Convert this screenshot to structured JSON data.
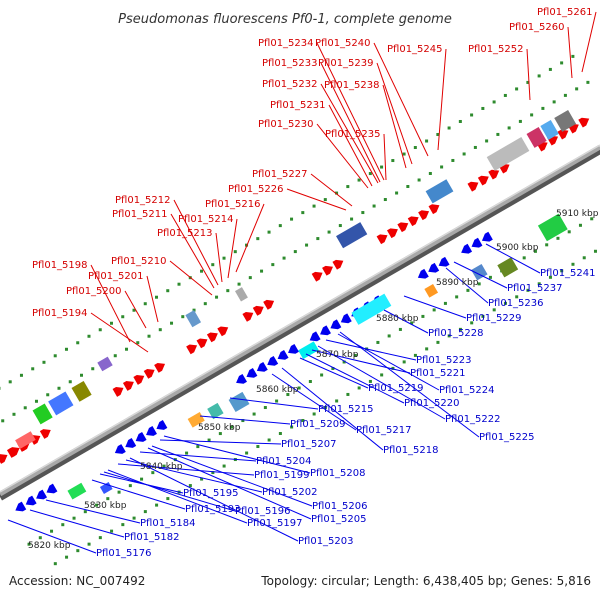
{
  "title": "Pseudomonas fluorescens Pf0-1, complete genome",
  "accession_label": "Accession: NC_007492",
  "summary_label": "Topology: circular; Length: 6,438,405 bp; Genes: 5,816",
  "colors": {
    "forward": "#ee0000",
    "reverse": "#0000ee",
    "backbone": "#999999",
    "tick": "#008800",
    "red_label": "#d40000",
    "blue_label": "#0000cc"
  },
  "ticks": [
    "5820 kbp",
    "5830 kbp",
    "5840 kbp",
    "5850 kbp",
    "5860 kbp",
    "5870 kbp",
    "5880 kbp",
    "5890 kbp",
    "5900 kbp",
    "5910 kbp"
  ],
  "forward_genes": [
    "Pfl01_5194",
    "Pfl01_5198",
    "Pfl01_5200",
    "Pfl01_5201",
    "Pfl01_5210",
    "Pfl01_5211",
    "Pfl01_5212",
    "Pfl01_5213",
    "Pfl01_5214",
    "Pfl01_5216",
    "Pfl01_5226",
    "Pfl01_5227",
    "Pfl01_5230",
    "Pfl01_5231",
    "Pfl01_5232",
    "Pfl01_5233",
    "Pfl01_5234",
    "Pfl01_5235",
    "Pfl01_5238",
    "Pfl01_5239",
    "Pfl01_5240",
    "Pfl01_5245",
    "Pfl01_5252",
    "Pfl01_5260",
    "Pfl01_5261"
  ],
  "reverse_genes": [
    "Pfl01_5176",
    "Pfl01_5182",
    "Pfl01_5184",
    "Pfl01_5193",
    "Pfl01_5195",
    "Pfl01_5196",
    "Pfl01_5197",
    "Pfl01_5199",
    "Pfl01_5202",
    "Pfl01_5203",
    "Pfl01_5204",
    "Pfl01_5205",
    "Pfl01_5206",
    "Pfl01_5207",
    "Pfl01_5208",
    "Pfl01_5209",
    "Pfl01_5215",
    "Pfl01_5217",
    "Pfl01_5218",
    "Pfl01_5219",
    "Pfl01_5220",
    "Pfl01_5221",
    "Pfl01_5222",
    "Pfl01_5223",
    "Pfl01_5224",
    "Pfl01_5225",
    "Pfl01_5228",
    "Pfl01_5229",
    "Pfl01_5236",
    "Pfl01_5237",
    "Pfl01_5241"
  ]
}
